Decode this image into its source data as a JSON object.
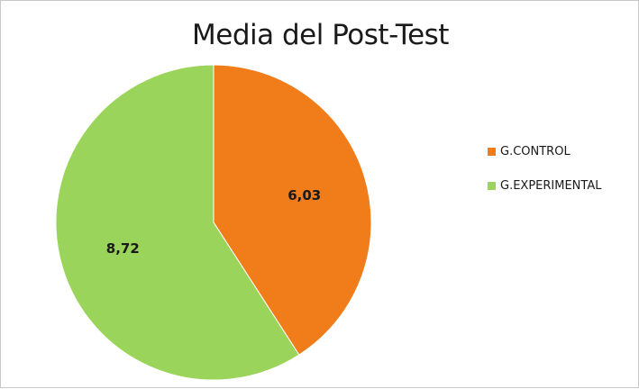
{
  "chart_data": {
    "type": "pie",
    "title": "Media del Post-Test",
    "categories": [
      "G.CONTROL",
      "G.EXPERIMENTAL"
    ],
    "values": [
      6.03,
      8.72
    ],
    "value_labels": [
      "6,03",
      "8,72"
    ],
    "colors": [
      "#f07d1a",
      "#9bd45a"
    ],
    "legend_placement": "right"
  }
}
